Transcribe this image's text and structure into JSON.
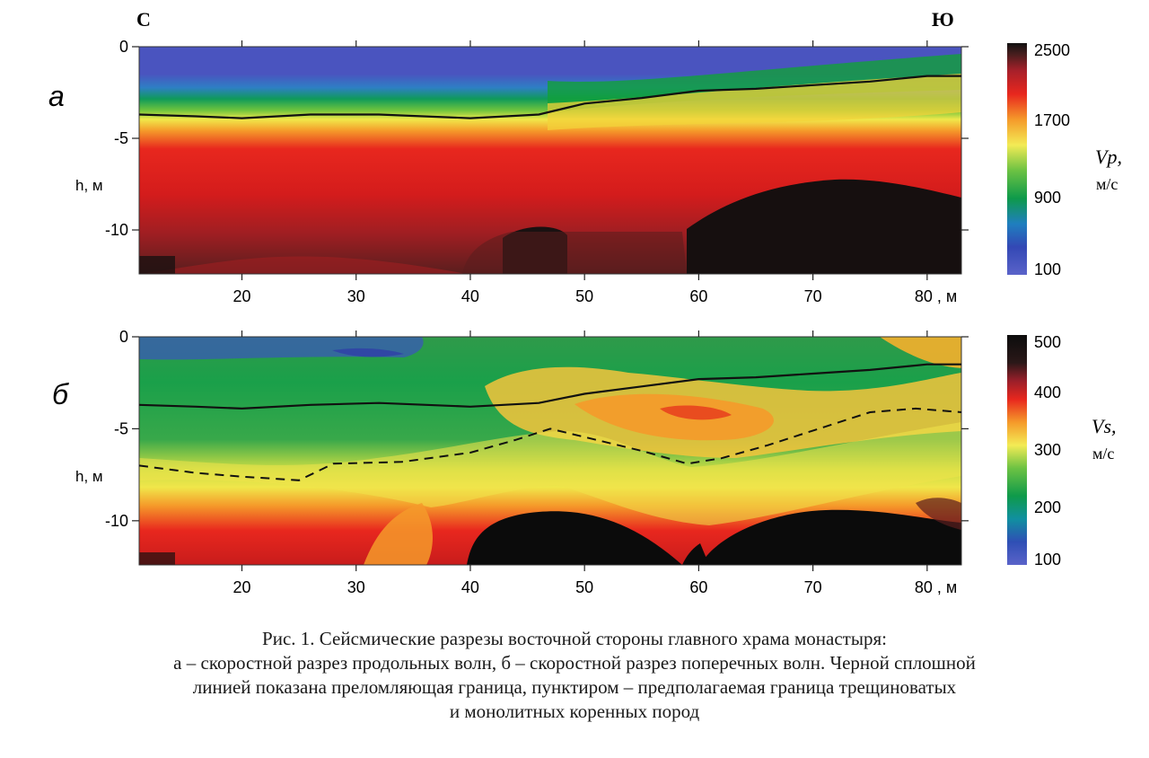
{
  "chart_data": [
    {
      "type": "heatmap",
      "panel_label": "а",
      "direction_left": "С",
      "direction_right": "Ю",
      "ylabel": "h, м",
      "xlim": [
        11,
        83
      ],
      "ylim": [
        -12.4,
        0
      ],
      "xticks": [
        20,
        30,
        40,
        50,
        60,
        70,
        80
      ],
      "xtick_labels": [
        "20",
        "30",
        "40",
        "50",
        "60",
        "70",
        "80 , м"
      ],
      "yticks": [
        0,
        -5,
        -10
      ],
      "ytick_labels": [
        "0",
        "-5",
        "-10"
      ],
      "colorbar": {
        "title_italic": "Vp,",
        "unit": "м/с",
        "min": 100,
        "max": 2500,
        "ticks": [
          100,
          900,
          1700,
          2500
        ],
        "tick_labels": [
          "100",
          "900",
          "1700",
          "2500"
        ]
      },
      "refractor_line": {
        "style": "solid",
        "x": [
          11,
          16,
          20,
          26,
          32,
          40,
          46,
          50,
          55,
          60,
          65,
          70,
          75,
          80,
          83
        ],
        "y": [
          -3.7,
          -3.8,
          -3.9,
          -3.7,
          -3.7,
          -3.9,
          -3.7,
          -3.1,
          -2.8,
          -2.4,
          -2.3,
          -2.1,
          -1.9,
          -1.6,
          -1.6
        ]
      }
    },
    {
      "type": "heatmap",
      "panel_label": "б",
      "ylabel": "h, м",
      "xlim": [
        11,
        83
      ],
      "ylim": [
        -12.4,
        0
      ],
      "xticks": [
        20,
        30,
        40,
        50,
        60,
        70,
        80
      ],
      "xtick_labels": [
        "20",
        "30",
        "40",
        "50",
        "60",
        "70",
        "80 , м"
      ],
      "yticks": [
        0,
        -5,
        -10
      ],
      "ytick_labels": [
        "0",
        "-5",
        "-10"
      ],
      "colorbar": {
        "title_italic": "Vs,",
        "unit": "м/с",
        "min": 100,
        "max": 500,
        "ticks": [
          100,
          200,
          300,
          400,
          500
        ],
        "tick_labels": [
          "100",
          "200",
          "300",
          "400",
          "500"
        ]
      },
      "refractor_line": {
        "style": "solid",
        "x": [
          11,
          16,
          20,
          26,
          32,
          40,
          46,
          50,
          55,
          60,
          65,
          70,
          75,
          80,
          83
        ],
        "y": [
          -3.7,
          -3.8,
          -3.9,
          -3.7,
          -3.6,
          -3.8,
          -3.6,
          -3.1,
          -2.7,
          -2.3,
          -2.2,
          -2.0,
          -1.8,
          -1.5,
          -1.5
        ]
      },
      "fracture_line": {
        "style": "dashed",
        "x": [
          11,
          16,
          20,
          25,
          28,
          34,
          40,
          44,
          47,
          51,
          55,
          59,
          62,
          66,
          71,
          75,
          79,
          83
        ],
        "y": [
          -7.0,
          -7.4,
          -7.6,
          -7.8,
          -6.9,
          -6.8,
          -6.3,
          -5.6,
          -5.0,
          -5.6,
          -6.2,
          -6.9,
          -6.6,
          -5.9,
          -4.9,
          -4.1,
          -3.9,
          -4.1
        ]
      }
    }
  ],
  "caption": [
    "Рис. 1. Сейсмические разрезы восточной стороны главного храма монастыря:",
    "а – скоростной разрез продольных волн, б – скоростной разрез поперечных волн. Черной сплошной",
    "линией показана преломляющая граница, пунктиром – предполагаемая граница трещиноватых",
    "и монолитных коренных пород"
  ]
}
